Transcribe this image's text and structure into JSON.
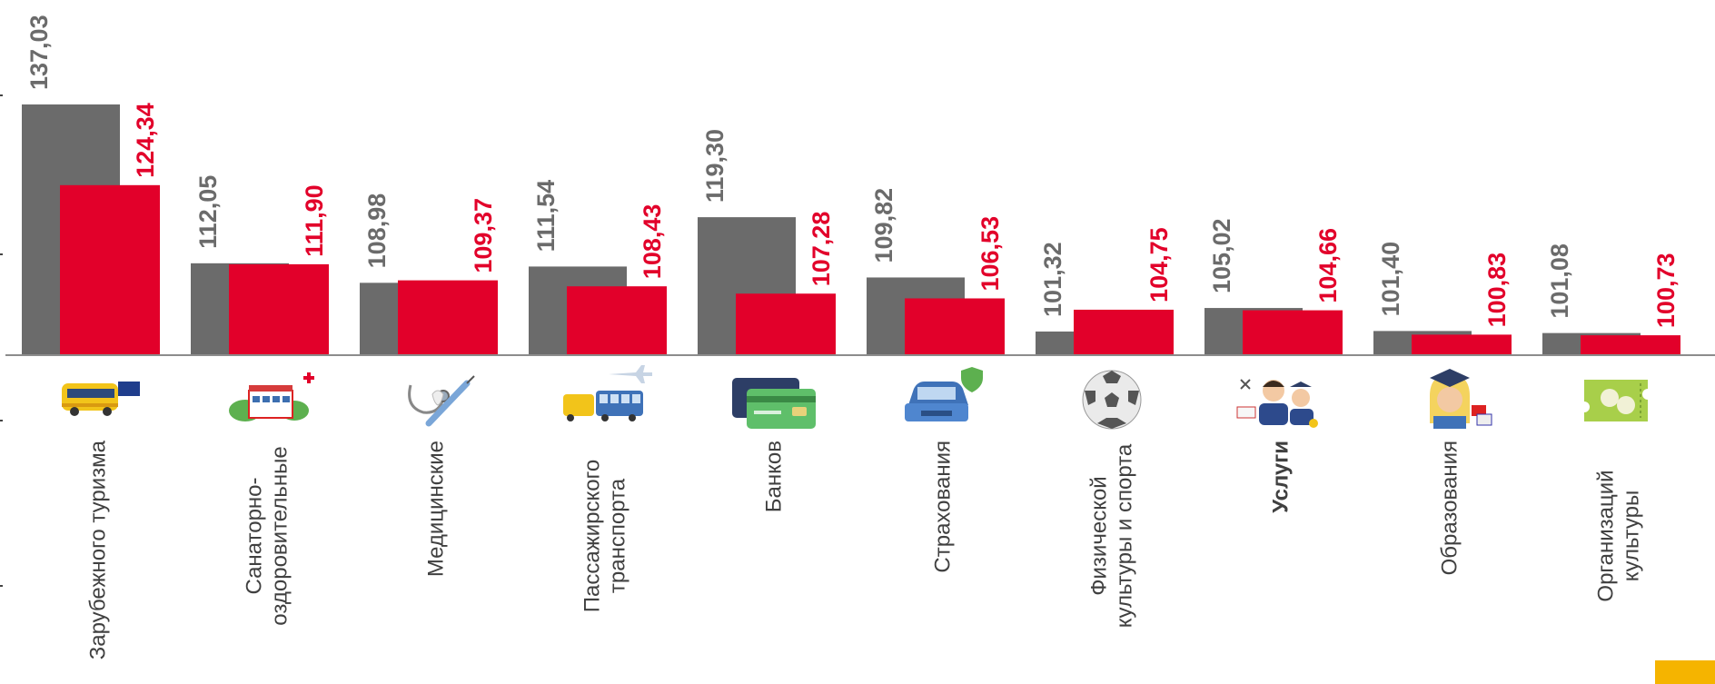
{
  "chart_data": {
    "type": "bar",
    "categories": [
      [
        "Зарубежного туризма"
      ],
      [
        "Санаторно-",
        "оздоровительные"
      ],
      [
        "Медицинские"
      ],
      [
        "Пассажирского",
        "транспорта"
      ],
      [
        "Банков"
      ],
      [
        "Страхования"
      ],
      [
        "Физической",
        "культуры и спорта"
      ],
      [
        "Услуги"
      ],
      [
        "Образования"
      ],
      [
        "Организаций",
        "культуры"
      ]
    ],
    "category_icons": [
      "bus-eu-icon",
      "sanatorium-icon",
      "stethoscope-syringe-icon",
      "tram-plane-icon",
      "bank-card-icon",
      "car-shield-icon",
      "soccer-ball-icon",
      "services-people-icon",
      "student-graduate-icon",
      "theatre-ticket-icon"
    ],
    "bold_category_index": 7,
    "series": [
      {
        "color": "#6b6b6b",
        "label_color": "#6b6b6b",
        "values": [
          137.03,
          112.05,
          108.98,
          111.54,
          119.3,
          109.82,
          101.32,
          105.02,
          101.4,
          101.08
        ],
        "labels": [
          "137,03",
          "112,05",
          "108,98",
          "111,54",
          "119,30",
          "109,82",
          "101,32",
          "105,02",
          "101,40",
          "101,08"
        ]
      },
      {
        "color": "#e2002a",
        "label_color": "#e2002a",
        "values": [
          124.34,
          111.9,
          109.37,
          108.43,
          107.28,
          106.53,
          104.75,
          104.66,
          100.83,
          100.73
        ],
        "labels": [
          "124,34",
          "111,90",
          "109,37",
          "108,43",
          "107,28",
          "106,53",
          "104,75",
          "104,66",
          "100,83",
          "100,73"
        ]
      }
    ],
    "baseline_value": 97.6,
    "legend": "none",
    "grid": false,
    "colors": {
      "axis": "#8c8c8c",
      "accent_corner": "#f5b400"
    }
  }
}
